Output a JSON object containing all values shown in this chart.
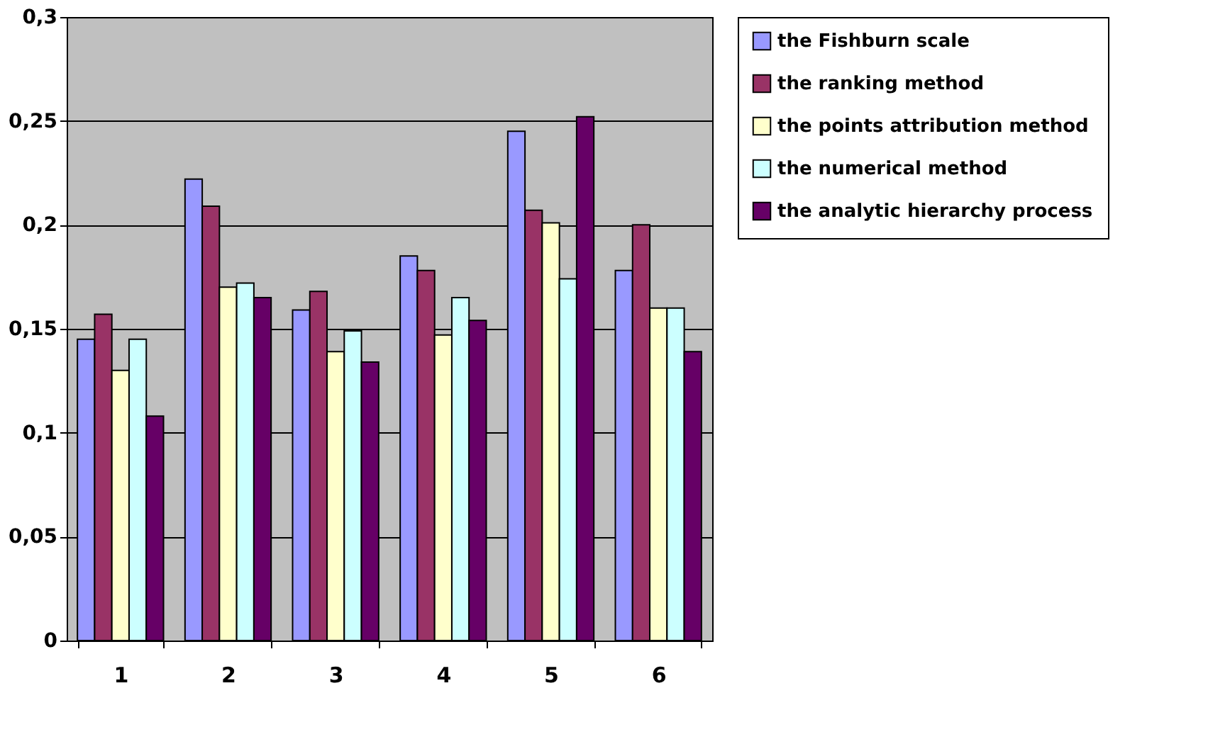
{
  "chart_data": {
    "type": "bar",
    "categories": [
      "1",
      "2",
      "3",
      "4",
      "5",
      "6"
    ],
    "series": [
      {
        "name": "the Fishburn scale",
        "color": "#9999ff",
        "values": [
          0.145,
          0.222,
          0.159,
          0.185,
          0.245,
          0.178
        ]
      },
      {
        "name": "the ranking method",
        "color": "#993366",
        "values": [
          0.157,
          0.209,
          0.168,
          0.178,
          0.207,
          0.2
        ]
      },
      {
        "name": "the points attribution method",
        "color": "#ffffcc",
        "values": [
          0.13,
          0.17,
          0.139,
          0.147,
          0.201,
          0.16
        ]
      },
      {
        "name": "the numerical method",
        "color": "#ccffff",
        "values": [
          0.145,
          0.172,
          0.149,
          0.165,
          0.174,
          0.16
        ]
      },
      {
        "name": "the analytic hierarchy process",
        "color": "#660066",
        "values": [
          0.108,
          0.165,
          0.134,
          0.154,
          0.252,
          0.139
        ]
      }
    ],
    "ylim": [
      0,
      0.3
    ],
    "yticks": [
      {
        "value": 0,
        "label": "0"
      },
      {
        "value": 0.05,
        "label": "0,05"
      },
      {
        "value": 0.1,
        "label": "0,1"
      },
      {
        "value": 0.15,
        "label": "0,15"
      },
      {
        "value": 0.2,
        "label": "0,2"
      },
      {
        "value": 0.25,
        "label": "0,25"
      },
      {
        "value": 0.3,
        "label": "0,3"
      }
    ],
    "grid": "y",
    "legend": "right"
  }
}
